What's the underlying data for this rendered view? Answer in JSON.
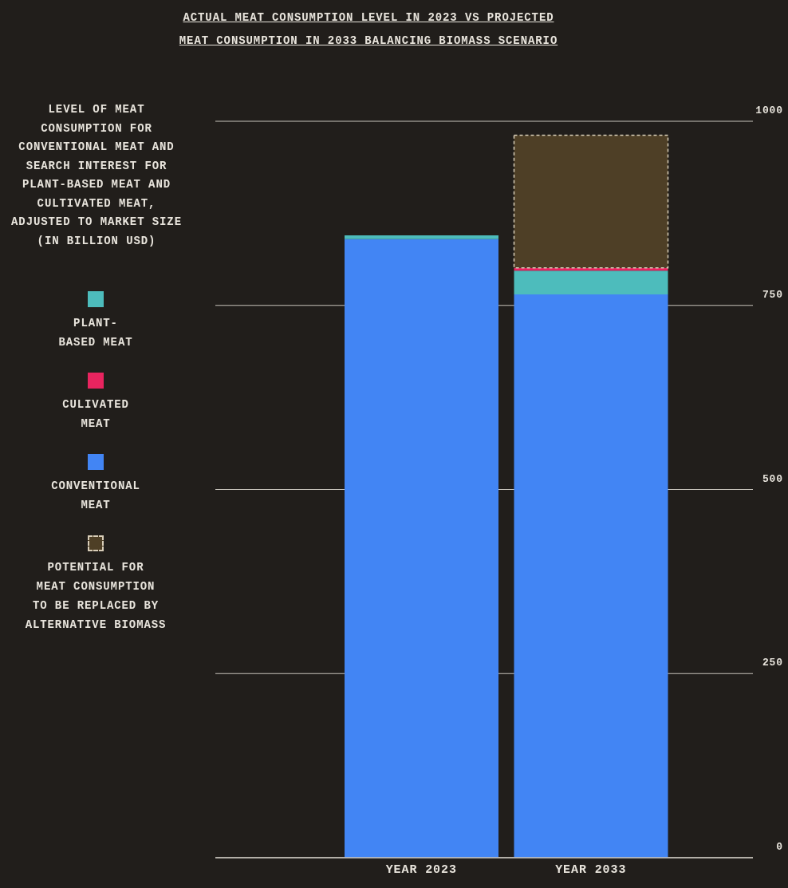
{
  "chart_data": {
    "type": "bar",
    "stacked": true,
    "title": "ACTUAL MEAT CONSUMPTION LEVEL IN 2023 VS PROJECTED MEAT CONSUMPTION IN 2033 BALANCING BIOMASS SCENARIO",
    "ylabel": "LEVEL OF MEAT CONSUMPTION FOR CONVENTIONAL MEAT AND SEARCH INTEREST FOR PLANT-BASED MEAT AND CULTIVATED MEAT, ADJUSTED TO MARKET SIZE (IN BILLION USD)",
    "categories": [
      "YEAR 2023",
      "YEAR 2033"
    ],
    "series": [
      {
        "name": "CONVENTIONAL MEAT",
        "color": "#4285f4",
        "values": [
          840,
          765
        ]
      },
      {
        "name": "PLANT-BASED MEAT",
        "color": "#4dbcbc",
        "values": [
          5,
          32
        ]
      },
      {
        "name": "CULIVATED MEAT",
        "color": "#e8245f",
        "values": [
          0,
          4
        ]
      },
      {
        "name": "POTENTIAL FOR MEAT CONSUMPTION TO BE REPLACED BY ALTERNATIVE BIOMASS",
        "color": "#4e3f26",
        "values": [
          null,
          180
        ],
        "line_style": "dashed"
      }
    ],
    "ylim": [
      0,
      1000
    ],
    "yticks": [
      0,
      250,
      500,
      750,
      1000
    ],
    "grid": "y",
    "legend": "left"
  }
}
